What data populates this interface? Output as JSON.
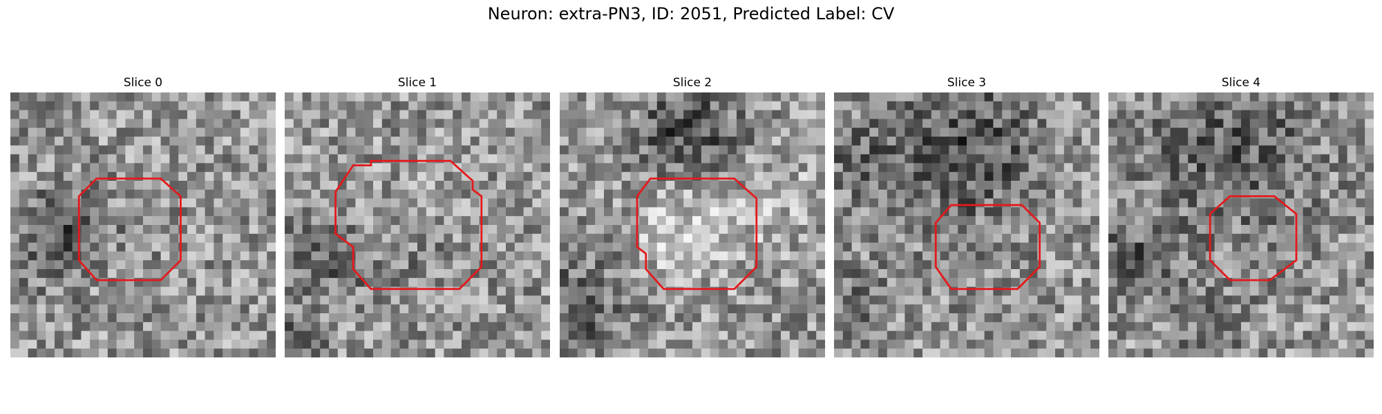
{
  "figure": {
    "title": "Neuron: extra-PN3, ID: 2051, Predicted Label: CV"
  },
  "colors": {
    "roi_outline": "#e31a1c",
    "background": "#ffffff",
    "colormap": "gray"
  },
  "panels": [
    {
      "title": "Slice 0"
    },
    {
      "title": "Slice 1"
    },
    {
      "title": "Slice 2"
    },
    {
      "title": "Slice 3"
    },
    {
      "title": "Slice 4"
    }
  ]
}
